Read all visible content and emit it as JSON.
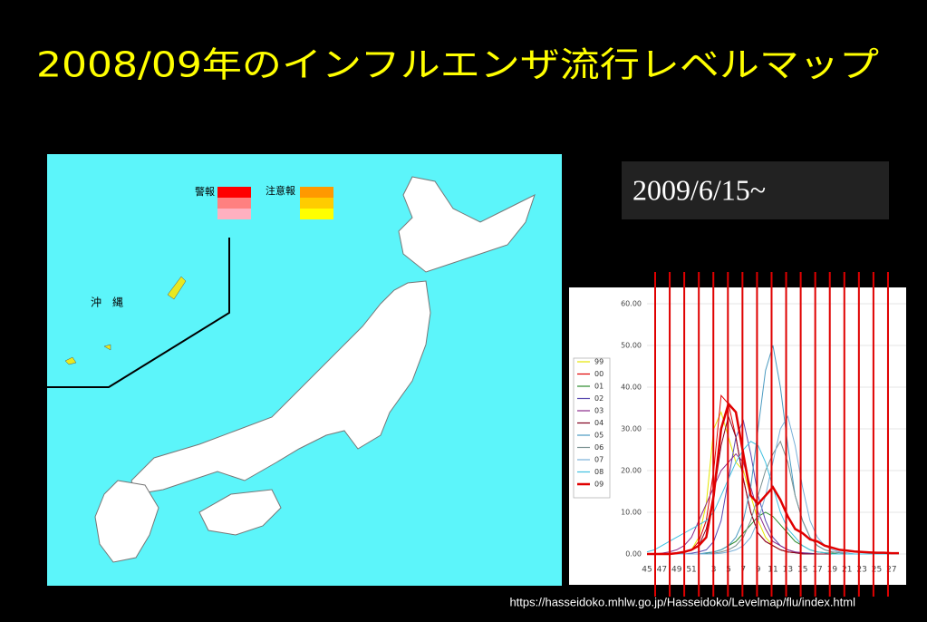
{
  "title": "2008/09年のインフルエンザ流行レベルマップ",
  "date_label": "2009/6/15~",
  "source_url": "https://hasseidoko.mhlw.go.jp/Hasseidoko/Levelmap/flu/index.html",
  "map": {
    "legend_warning": "警報",
    "legend_advisory": "注意報",
    "okinawa_label": "沖　縄"
  },
  "chart_data": {
    "type": "line",
    "categories": [
      "45",
      null,
      "47",
      null,
      "49",
      null,
      "51",
      null,
      null,
      "3",
      null,
      "5",
      null,
      "7",
      null,
      "9",
      null,
      "11",
      null,
      "13",
      null,
      "15",
      null,
      "17",
      null,
      "19",
      null,
      "21",
      null,
      "23",
      null,
      "25",
      null,
      "27",
      null
    ],
    "ylim": [
      0,
      60
    ],
    "yticks": [
      {
        "value": 0,
        "label": "0.00"
      },
      {
        "value": 10,
        "label": "10.00"
      },
      {
        "value": 20,
        "label": "20.00"
      },
      {
        "value": 30,
        "label": "30.00"
      },
      {
        "value": 40,
        "label": "40.00"
      },
      {
        "value": 50,
        "label": "50.00"
      },
      {
        "value": 60,
        "label": "60.00"
      }
    ],
    "series": [
      {
        "name": "99",
        "color": "#e6e600",
        "values": [
          0,
          0,
          0,
          0,
          0,
          0.3,
          1,
          4,
          12,
          30,
          34,
          28,
          22,
          20,
          14,
          8,
          4,
          2,
          1,
          0.5,
          0.3,
          0.2,
          0,
          0,
          0,
          0,
          0,
          0,
          0,
          0,
          0,
          0,
          0,
          0,
          0
        ]
      },
      {
        "name": "00",
        "color": "#e00000",
        "values": [
          0,
          0,
          0,
          0,
          0,
          0.5,
          1,
          3,
          8,
          20,
          38,
          36,
          28,
          18,
          10,
          5,
          3,
          2,
          1,
          0.5,
          0.3,
          0.2,
          0.1,
          0,
          0,
          0,
          0,
          0,
          0,
          0,
          0,
          0,
          0,
          0,
          0
        ]
      },
      {
        "name": "01",
        "color": "#2a8a2a",
        "values": [
          0,
          0,
          0,
          0,
          0,
          0,
          0,
          0,
          0.2,
          0.5,
          1,
          2,
          3,
          5,
          7,
          9,
          10,
          9,
          7,
          5,
          3,
          2,
          1,
          0.5,
          0.3,
          0.2,
          0,
          0,
          0,
          0,
          0,
          0,
          0,
          0,
          0
        ]
      },
      {
        "name": "02",
        "color": "#5a4ab0",
        "values": [
          0,
          0,
          0,
          0,
          0,
          0,
          0.2,
          0.5,
          1,
          3,
          8,
          18,
          28,
          32,
          24,
          14,
          8,
          4,
          2,
          1,
          0.5,
          0.3,
          0.2,
          0,
          0,
          0,
          0,
          0,
          0,
          0,
          0,
          0,
          0,
          0,
          0
        ]
      },
      {
        "name": "03",
        "color": "#8a2a8a",
        "values": [
          0,
          0,
          0.2,
          0.5,
          1,
          2,
          4,
          8,
          12,
          16,
          20,
          22,
          24,
          22,
          16,
          10,
          6,
          3,
          2,
          1,
          0.5,
          0.3,
          0,
          0,
          0,
          0,
          0,
          0,
          0,
          0,
          0,
          0,
          0,
          0,
          0
        ]
      },
      {
        "name": "04",
        "color": "#800020",
        "values": [
          0,
          0,
          0,
          0,
          0,
          0.3,
          1,
          2,
          6,
          14,
          26,
          33,
          28,
          18,
          10,
          5,
          3,
          2,
          1,
          0.5,
          0.3,
          0,
          0,
          0,
          0,
          0,
          0,
          0,
          0,
          0,
          0,
          0,
          0,
          0,
          0
        ]
      },
      {
        "name": "05",
        "color": "#4a9ac0",
        "values": [
          0,
          0,
          0,
          0,
          0,
          0,
          0,
          0,
          0.3,
          0.5,
          1,
          2,
          4,
          8,
          16,
          30,
          44,
          50,
          40,
          26,
          14,
          8,
          4,
          2,
          1,
          0.5,
          0.3,
          0,
          0,
          0,
          0,
          0,
          0,
          0,
          0
        ]
      },
      {
        "name": "06",
        "color": "#7a9090",
        "values": [
          0,
          0,
          0,
          0,
          0,
          0,
          0,
          0,
          0,
          0.2,
          0.5,
          1,
          2,
          4,
          8,
          14,
          20,
          24,
          27,
          22,
          14,
          8,
          4,
          2,
          1,
          0.5,
          0.3,
          0,
          0,
          0,
          0,
          0,
          0,
          0,
          0
        ]
      },
      {
        "name": "07",
        "color": "#7ab0d8",
        "values": [
          0,
          0,
          0,
          0,
          0,
          0,
          0,
          0,
          0,
          0,
          0.2,
          0.5,
          1,
          2,
          4,
          8,
          14,
          22,
          30,
          33,
          26,
          16,
          8,
          4,
          2,
          1,
          0.5,
          0.3,
          0,
          0,
          0,
          0,
          0,
          0,
          0
        ]
      },
      {
        "name": "08",
        "color": "#40c0e0",
        "values": [
          0.5,
          1,
          2,
          3,
          4,
          5,
          6,
          7,
          8,
          10,
          14,
          18,
          22,
          25,
          27,
          26,
          22,
          16,
          10,
          6,
          4,
          2,
          1,
          0.5,
          0.3,
          0,
          0,
          0,
          0,
          0,
          0,
          0,
          0,
          0,
          0
        ]
      },
      {
        "name": "09",
        "color": "#e00000",
        "values": [
          0,
          0,
          0,
          0,
          0.2,
          0.5,
          1,
          2,
          4,
          14,
          30,
          36,
          34,
          24,
          14,
          12,
          14,
          16,
          13,
          9,
          6,
          5,
          3.5,
          3,
          2,
          1.5,
          1,
          0.8,
          0.6,
          0.5,
          0.4,
          0.3,
          0.3,
          0.2,
          0.2
        ]
      }
    ]
  }
}
